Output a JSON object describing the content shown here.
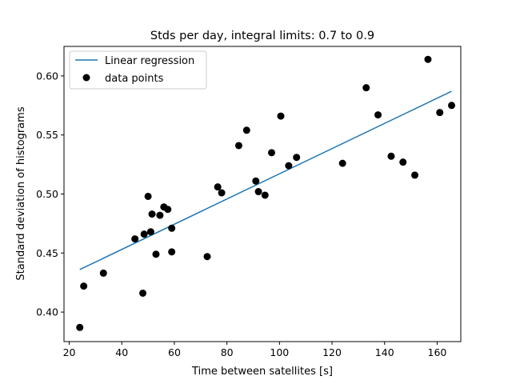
{
  "chart_data": {
    "type": "scatter",
    "title": "Stds per day, integral limits: 0.7 to 0.9",
    "xlabel": "Time between satellites [s]",
    "ylabel": "Standard deviation of histograms",
    "xlim": [
      18,
      169
    ],
    "ylim": [
      0.375,
      0.625
    ],
    "xticks": [
      20,
      40,
      60,
      80,
      100,
      120,
      140,
      160
    ],
    "yticks": [
      0.4,
      0.45,
      0.5,
      0.55,
      0.6
    ],
    "ytick_labels": [
      "0.40",
      "0.45",
      "0.50",
      "0.55",
      "0.60"
    ],
    "grid": false,
    "legend": {
      "placement": "top-left",
      "entries": [
        "Linear regression",
        "data points"
      ]
    },
    "series": [
      {
        "name": "Linear regression",
        "kind": "line",
        "color": "#1f77b4",
        "x": [
          24,
          165.5
        ],
        "y": [
          0.436,
          0.587
        ]
      },
      {
        "name": "data points",
        "kind": "scatter",
        "color": "#000000",
        "points": [
          [
            24,
            0.387
          ],
          [
            25.5,
            0.422
          ],
          [
            33,
            0.433
          ],
          [
            45,
            0.462
          ],
          [
            48,
            0.416
          ],
          [
            48.5,
            0.466
          ],
          [
            50,
            0.498
          ],
          [
            51,
            0.468
          ],
          [
            51.5,
            0.483
          ],
          [
            53,
            0.449
          ],
          [
            54.5,
            0.482
          ],
          [
            56,
            0.489
          ],
          [
            57.5,
            0.487
          ],
          [
            59,
            0.451
          ],
          [
            59,
            0.471
          ],
          [
            72.5,
            0.447
          ],
          [
            76.5,
            0.506
          ],
          [
            78,
            0.501
          ],
          [
            84.5,
            0.541
          ],
          [
            87.5,
            0.554
          ],
          [
            91,
            0.511
          ],
          [
            92,
            0.502
          ],
          [
            94.5,
            0.499
          ],
          [
            97,
            0.535
          ],
          [
            100.5,
            0.566
          ],
          [
            103.5,
            0.524
          ],
          [
            106.5,
            0.531
          ],
          [
            124,
            0.526
          ],
          [
            133,
            0.59
          ],
          [
            137.5,
            0.567
          ],
          [
            142.5,
            0.532
          ],
          [
            147,
            0.527
          ],
          [
            151.5,
            0.516
          ],
          [
            156.5,
            0.614
          ],
          [
            161,
            0.569
          ],
          [
            165.5,
            0.575
          ]
        ]
      }
    ]
  }
}
